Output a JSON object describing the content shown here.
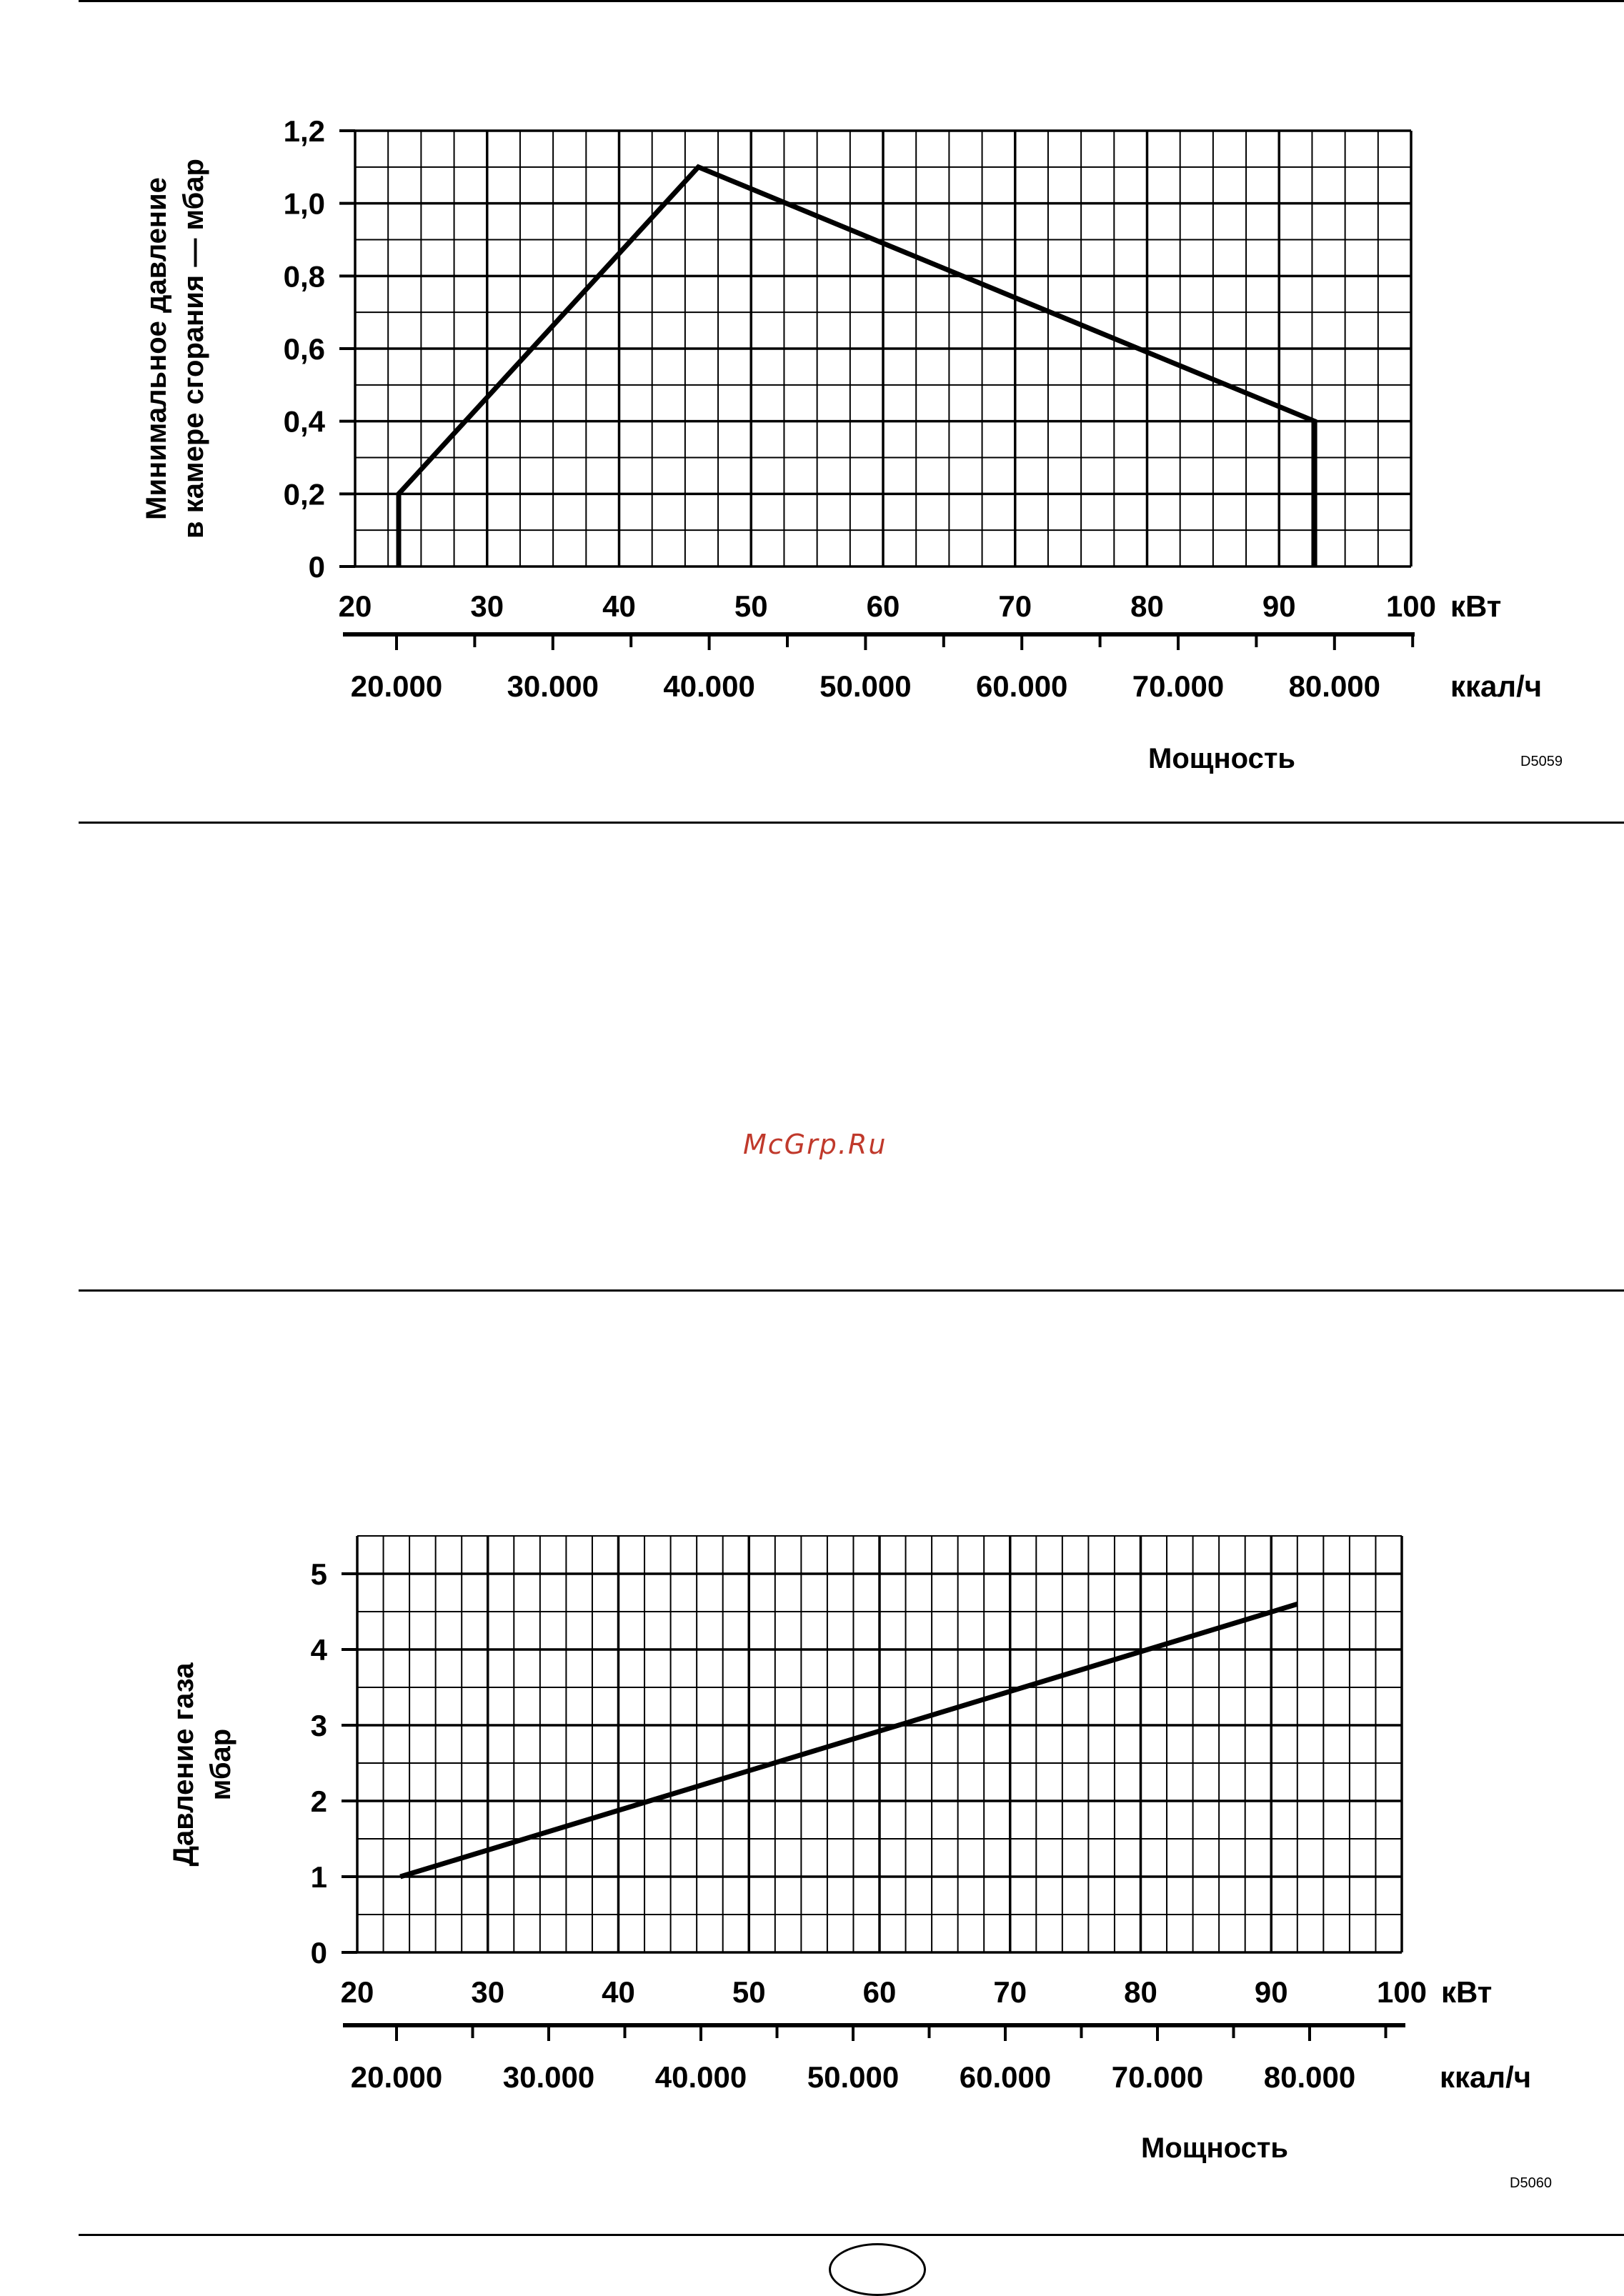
{
  "watermark": "McGrp.Ru",
  "chart_data": [
    {
      "type": "line",
      "ylabel_lines": [
        "Минимальное давление",
        "в камере сгорания — мбар"
      ],
      "xlabel": "Мощность",
      "x_unit_primary": "кВт",
      "x_unit_secondary": "ккал/ч",
      "xlim": [
        20,
        100
      ],
      "ylim": [
        0,
        1.2
      ],
      "x_ticks": [
        20,
        30,
        40,
        50,
        60,
        70,
        80,
        90,
        100
      ],
      "x_tick_labels": [
        "20",
        "30",
        "40",
        "50",
        "60",
        "70",
        "80",
        "90",
        "100"
      ],
      "y_ticks": [
        0,
        0.2,
        0.4,
        0.6,
        0.8,
        1.0,
        1.2
      ],
      "y_tick_labels": [
        "0",
        "0,2",
        "0,4",
        "0,6",
        "0,8",
        "1,0",
        "1,2"
      ],
      "kcal_ticks": [
        20000,
        30000,
        40000,
        50000,
        60000,
        70000,
        80000
      ],
      "kcal_tick_labels": [
        "20.000",
        "30.000",
        "40.000",
        "50.000",
        "60.000",
        "70.000",
        "80.000"
      ],
      "kcal_minor_ticks": [
        25000,
        35000,
        45000,
        55000,
        65000,
        75000,
        85000
      ],
      "grid": true,
      "series": [
        {
          "name": "min-pressure",
          "x": [
            23.3,
            23.3,
            46,
            92.7,
            92.7
          ],
          "y": [
            0,
            0.2,
            1.1,
            0.4,
            0
          ]
        }
      ],
      "code": "D5059"
    },
    {
      "type": "line",
      "ylabel_lines": [
        "Давление газа",
        "мбар"
      ],
      "xlabel": "Мощность",
      "x_unit_primary": "кВт",
      "x_unit_secondary": "ккал/ч",
      "xlim": [
        20,
        100
      ],
      "ylim": [
        0,
        5.5
      ],
      "x_ticks": [
        20,
        30,
        40,
        50,
        60,
        70,
        80,
        90,
        100
      ],
      "x_tick_labels": [
        "20",
        "30",
        "40",
        "50",
        "60",
        "70",
        "80",
        "90",
        "100"
      ],
      "y_ticks": [
        0,
        1,
        2,
        3,
        4,
        5
      ],
      "y_tick_labels": [
        "0",
        "1",
        "2",
        "3",
        "4",
        "5"
      ],
      "kcal_ticks": [
        20000,
        30000,
        40000,
        50000,
        60000,
        70000,
        80000
      ],
      "kcal_tick_labels": [
        "20.000",
        "30.000",
        "40.000",
        "50.000",
        "60.000",
        "70.000",
        "80.000"
      ],
      "kcal_minor_ticks": [
        25000,
        35000,
        45000,
        55000,
        65000,
        75000,
        85000
      ],
      "grid": true,
      "series": [
        {
          "name": "gas-pressure",
          "x": [
            23.3,
            92
          ],
          "y": [
            1.0,
            4.6
          ]
        }
      ],
      "code": "D5060"
    }
  ]
}
